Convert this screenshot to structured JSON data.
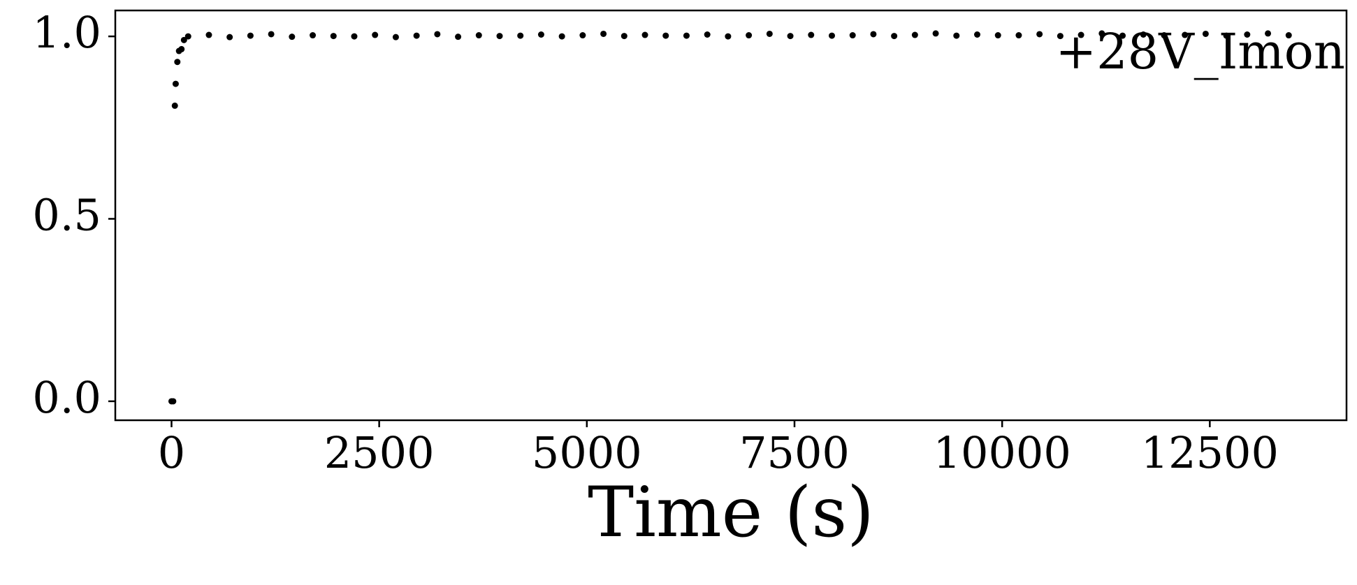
{
  "chart_data": {
    "type": "scatter",
    "xlabel": "Time (s)",
    "annotation": "+28V_Imon",
    "color": "#000000",
    "x": [
      0,
      20,
      40,
      50,
      70,
      90,
      120,
      150,
      200,
      450,
      700,
      950,
      1200,
      1450,
      1700,
      1950,
      2200,
      2450,
      2700,
      2950,
      3200,
      3450,
      3700,
      3950,
      4200,
      4450,
      4700,
      4950,
      5200,
      5450,
      5700,
      5950,
      6200,
      6450,
      6700,
      6950,
      7200,
      7450,
      7700,
      7950,
      8200,
      8450,
      8700,
      8950,
      9200,
      9450,
      9700,
      9950,
      10200,
      10450,
      10700,
      10950,
      11200,
      11450,
      11700,
      11950,
      12200,
      12450,
      12700,
      12950,
      13200,
      13450
    ],
    "values": [
      0.0,
      0.0,
      0.81,
      0.87,
      0.93,
      0.96,
      0.965,
      0.99,
      1.0,
      1.004,
      0.998,
      1.002,
      1.006,
      0.999,
      1.003,
      1.001,
      1.0,
      1.004,
      0.998,
      1.002,
      1.006,
      0.999,
      1.003,
      1.001,
      1.002,
      1.005,
      1.0,
      1.003,
      1.007,
      1.001,
      1.004,
      1.002,
      1.002,
      1.005,
      1.0,
      1.003,
      1.007,
      1.001,
      1.004,
      1.002,
      1.003,
      1.006,
      1.001,
      1.004,
      1.008,
      1.002,
      1.005,
      1.003,
      1.003,
      1.006,
      1.001,
      1.004,
      1.008,
      1.002,
      1.005,
      1.003,
      1.004,
      1.007,
      1.002,
      1.005,
      1.008,
      1.003
    ],
    "xlim": [
      -677,
      14146
    ],
    "ylim": [
      -0.052,
      1.071
    ],
    "xticks": [
      0,
      2500,
      5000,
      7500,
      10000,
      12500
    ],
    "yticks": [
      {
        "value": 0,
        "label": "0.0"
      },
      {
        "value": 0.5,
        "label": "0.5"
      },
      {
        "value": 1,
        "label": "1.0"
      }
    ],
    "grid": false
  }
}
